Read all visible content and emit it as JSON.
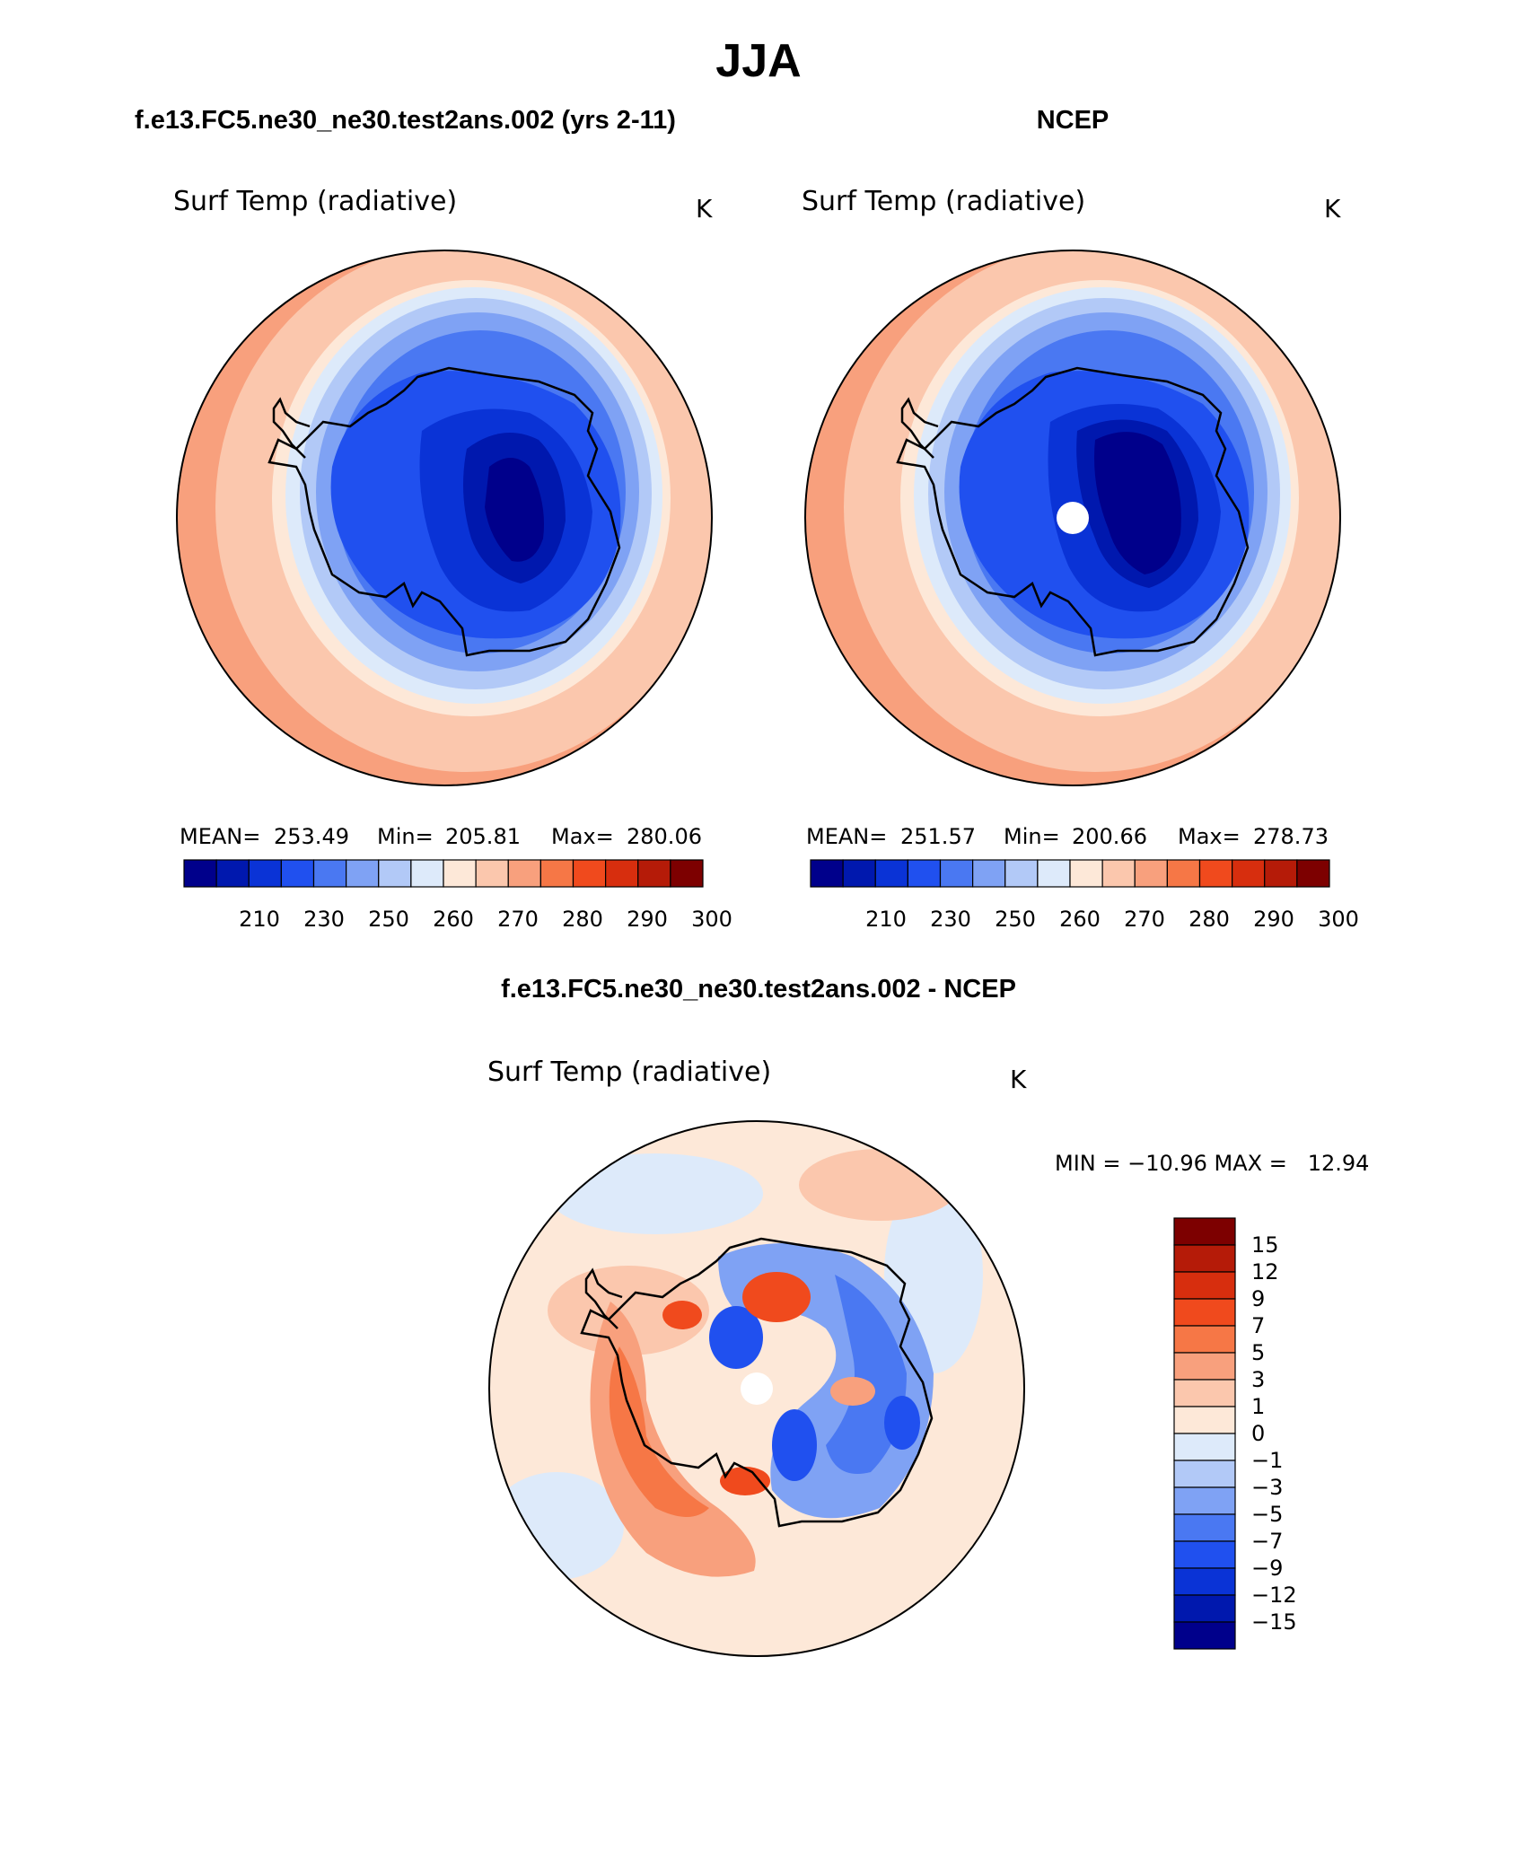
{
  "figure": {
    "season": "JJA",
    "panel_titles": {
      "left": "f.e13.FC5.ne30_ne30.test2ans.002 (yrs 2-11)",
      "right": "NCEP",
      "diff": "f.e13.FC5.ne30_ne30.test2ans.002 - NCEP"
    },
    "variable": "Surf Temp (radiative)",
    "units": "K"
  },
  "stats": {
    "left": {
      "mean_label": "MEAN=",
      "mean": "253.49",
      "min_label": "Min=",
      "min": "205.81",
      "max_label": "Max=",
      "max": "280.06"
    },
    "right": {
      "mean_label": "MEAN=",
      "mean": "251.57",
      "min_label": "Min=",
      "min": "200.66",
      "max_label": "Max=",
      "max": "278.73"
    },
    "diff": {
      "text": "MIN = −10.96 MAX =   12.94"
    }
  },
  "colorbars": {
    "absolute": {
      "colors": [
        "#00008b",
        "#0018ae",
        "#0a33d6",
        "#2050ef",
        "#4a78f2",
        "#7fa2f4",
        "#b2c9f7",
        "#ddeafa",
        "#fde8d8",
        "#fbc7ad",
        "#f8a07d",
        "#f67746",
        "#f04a1d",
        "#d72e0e",
        "#b51b08",
        "#7d0000"
      ],
      "labels": [
        "210",
        "230",
        "250",
        "260",
        "270",
        "280",
        "290",
        "300"
      ]
    },
    "difference": {
      "colors": [
        "#7d0000",
        "#b51b08",
        "#d72e0e",
        "#f04a1d",
        "#f67746",
        "#f8a07d",
        "#fbc7ad",
        "#fde8d8",
        "#ddeafa",
        "#b2c9f7",
        "#7fa2f4",
        "#4a78f2",
        "#2050ef",
        "#0a33d6",
        "#0018ae",
        "#00008b"
      ],
      "labels": [
        "15",
        "12",
        "9",
        "7",
        "5",
        "3",
        "1",
        "0",
        "−1",
        "−3",
        "−5",
        "−7",
        "−9",
        "−12",
        "−15"
      ]
    }
  },
  "maps": {
    "projection": "south-polar-stereographic",
    "region": "Antarctica and Southern Ocean",
    "colors": {
      "ocean_outer": "#f8a07d",
      "ocean_mid": "#fbc7ad",
      "sea_ice_edge": "#ddeafa",
      "coast": "#000000",
      "pole_hole": "#ffffff"
    }
  }
}
